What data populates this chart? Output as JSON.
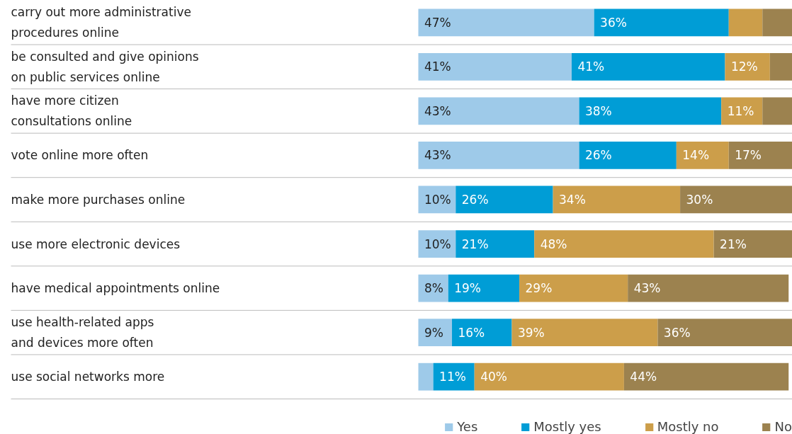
{
  "chart_data": {
    "type": "bar",
    "orientation": "horizontal",
    "stacked": true,
    "grid": "y",
    "legend": "bottom",
    "categories": [
      "carry out more administrative\nprocedures online",
      "be consulted and give opinions\non public services online",
      "have more citizen\nconsultations online",
      "vote online more often",
      "make more purchases online",
      "use more electronic devices",
      "have medical appointments online",
      "use health-related apps\nand devices more often",
      "use social networks more"
    ],
    "series": [
      {
        "name": "Yes",
        "color": "#9ecae9",
        "values": [
          47,
          41,
          43,
          43,
          10,
          10,
          8,
          9,
          4
        ],
        "value_labels": [
          "47%",
          "41%",
          "43%",
          "43%",
          "10%",
          "10%",
          "8%",
          "9%",
          null
        ]
      },
      {
        "name": "Mostly yes",
        "color": "#009dd6",
        "values": [
          36,
          41,
          38,
          26,
          26,
          21,
          19,
          16,
          11
        ],
        "value_labels": [
          "36%",
          "41%",
          "38%",
          "26%",
          "26%",
          "21%",
          "19%",
          "16%",
          "11%"
        ]
      },
      {
        "name": "Mostly no",
        "color": "#cc9e4a",
        "values": [
          9,
          12,
          11,
          14,
          34,
          48,
          29,
          39,
          40
        ],
        "value_labels": [
          null,
          "12%",
          "11%",
          "14%",
          "34%",
          "48%",
          "29%",
          "39%",
          "40%"
        ]
      },
      {
        "name": "No",
        "color": "#9c824f",
        "values": [
          8,
          6,
          8,
          17,
          30,
          21,
          43,
          36,
          44
        ],
        "value_labels": [
          null,
          null,
          null,
          "17%",
          "30%",
          "21%",
          "43%",
          "36%",
          "44%"
        ]
      }
    ]
  }
}
